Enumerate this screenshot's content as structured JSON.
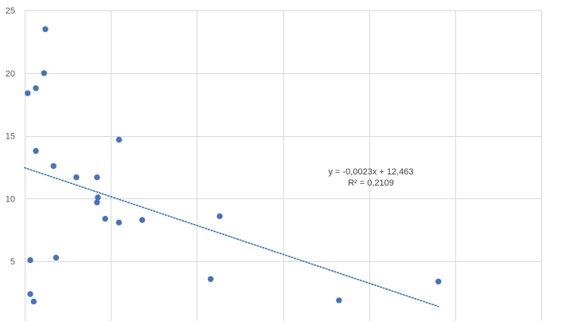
{
  "chart_data": {
    "type": "scatter",
    "title": "",
    "xlabel": "",
    "ylabel": "",
    "xlim": [
      0,
      6000
    ],
    "ylim": [
      0,
      25
    ],
    "x_gridlines": [
      0,
      1000,
      2000,
      3000,
      4000,
      5000,
      6000
    ],
    "y_ticks": [
      5,
      10,
      15,
      20,
      25
    ],
    "grid": true,
    "marker_color": "#4472C4",
    "trendline_color": "#2E75B6",
    "series": [
      {
        "points": [
          {
            "x": 240,
            "y": 23.5
          },
          {
            "x": 225,
            "y": 20.0
          },
          {
            "x": 130,
            "y": 18.8
          },
          {
            "x": 35,
            "y": 18.4
          },
          {
            "x": 130,
            "y": 13.8
          },
          {
            "x": 335,
            "y": 12.6
          },
          {
            "x": 600,
            "y": 11.7
          },
          {
            "x": 840,
            "y": 11.7
          },
          {
            "x": 1095,
            "y": 14.7
          },
          {
            "x": 850,
            "y": 10.1
          },
          {
            "x": 840,
            "y": 9.7
          },
          {
            "x": 935,
            "y": 8.4
          },
          {
            "x": 1095,
            "y": 8.1
          },
          {
            "x": 1365,
            "y": 8.3
          },
          {
            "x": 2265,
            "y": 8.6
          },
          {
            "x": 65,
            "y": 5.1
          },
          {
            "x": 365,
            "y": 5.3
          },
          {
            "x": 2160,
            "y": 3.6
          },
          {
            "x": 65,
            "y": 2.4
          },
          {
            "x": 105,
            "y": 1.8
          },
          {
            "x": 3650,
            "y": 1.9
          },
          {
            "x": 4805,
            "y": 3.4
          }
        ]
      }
    ],
    "trendline": {
      "slope": -0.0023,
      "intercept": 12.463,
      "x_range": [
        0,
        4805
      ],
      "equation_label": "y = -0,0023x + 12,463",
      "r2_label": "R² = 0,2109"
    }
  }
}
